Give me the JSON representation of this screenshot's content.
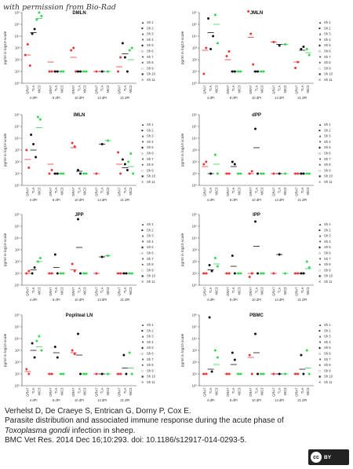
{
  "watermark": "with permission from Bio-Rad",
  "legend_items": [
    "Sh 1",
    "Sh 2",
    "Sh 3",
    "Sh 4",
    "Sh 5",
    "Sh 6",
    "Sh 7",
    "Sh 8",
    "Sh 9",
    "Sh 10",
    "Sh 11"
  ],
  "legend_symbols": [
    "▲",
    "■",
    "▲",
    "▼",
    "◆",
    "◇",
    "▼",
    "★",
    "□",
    "◉",
    "✕"
  ],
  "colors": {
    "black": "#111111",
    "red": "#e33b3b",
    "green": "#39d356",
    "axis": "#444444"
  },
  "citation": {
    "line1": "Verhelst D, De Craeye S, Entrican G, Dorny P, Cox E.",
    "line2": "Parasite distribution and associated immune response during the acute phase of",
    "line3_italic": "Toxoplasma gondii",
    "line3_rest": " infection in sheep.",
    "line4": "BMC Vet Res. 2014 Dec 16;10:293. doi: 10.1186/s12917-014-0293-5."
  },
  "license_badge": {
    "symbol": "cc",
    "text": "BY"
  },
  "chart_data": [
    {
      "type": "scatter",
      "title": "DMLN",
      "ylabel": "pg/ml in log10 scale",
      "yticks": [
        "10⁰",
        "10¹",
        "10²",
        "10³",
        "10⁴",
        "10⁵",
        "10⁶"
      ],
      "ylim": [
        0,
        6
      ],
      "groups": [
        "4 dPI",
        "8 dPI",
        "10 dPI",
        "14 dPI",
        "21 dPI"
      ],
      "methods": [
        "GRA7",
        "TLA",
        "MIC3"
      ],
      "points": [
        [
          [
            2.4,
            3.3,
            1.5
          ],
          [
            4.2,
            4.6
          ],
          [
            5.4,
            6.0,
            5.7
          ]
        ],
        [
          [
            1.0,
            1.0
          ],
          [
            1.0,
            1.0
          ],
          [
            1.0,
            1.0
          ]
        ],
        [
          [
            2.8,
            3.0,
            1.0
          ],
          [
            1.0,
            1.0
          ],
          [
            1.0,
            1.0
          ]
        ],
        [
          [
            1.0
          ],
          [
            1.0
          ],
          [
            1.0
          ]
        ],
        [
          [
            1.0,
            2.2
          ],
          [
            3.4,
            2.2,
            1.0
          ],
          [
            2.8,
            3.0
          ]
        ]
      ],
      "medians": [
        [
          2.4,
          4.3,
          5.5
        ],
        [
          1.8,
          1.0,
          1.0
        ],
        [
          2.2,
          1.0,
          1.0
        ],
        [
          1.0,
          1.0,
          1.0
        ],
        [
          1.4,
          2.5,
          2.0
        ]
      ]
    },
    {
      "type": "scatter",
      "title": "JMLN",
      "ylabel": "pg/ml in log10 scale",
      "yticks": [
        "10⁰",
        "10¹",
        "10²",
        "10³",
        "10⁴",
        "10⁵",
        "10⁶"
      ],
      "ylim": [
        0,
        6
      ],
      "groups": [
        "4 dPI",
        "8 dPI",
        "10 dPI",
        "14 dPI",
        "21 dPI"
      ],
      "methods": [
        "GRA7",
        "TLA",
        "MIC3"
      ],
      "points": [
        [
          [
            0.8,
            3.0
          ],
          [
            5.5,
            2.9,
            4.0
          ],
          [
            5.8,
            3.4
          ]
        ],
        [
          [
            2.3,
            2.7
          ],
          [
            1.0,
            1.0
          ],
          [
            1.0,
            1.0
          ]
        ],
        [
          [
            6.1,
            4.2,
            1.6
          ],
          [
            1.0,
            1.0
          ],
          [
            1.0,
            1.0
          ]
        ],
        [
          [
            3.5
          ],
          [
            3.2
          ],
          [
            3.3
          ]
        ],
        [
          [
            1.3,
            1.8
          ],
          [
            2.9,
            3.1
          ],
          [
            2.9,
            2.4
          ]
        ]
      ],
      "medians": [
        [
          2.8,
          4.3,
          5.0
        ],
        [
          2.0,
          1.0,
          1.0
        ],
        [
          3.9,
          1.0,
          1.0
        ],
        [
          3.5,
          3.3,
          3.3
        ],
        [
          1.8,
          2.8,
          2.6
        ]
      ]
    },
    {
      "type": "scatter",
      "title": "IMLN",
      "ylabel": "pg/ml in log10 scale",
      "yticks": [
        "10⁰",
        "10¹",
        "10²",
        "10³",
        "10⁴",
        "10⁵",
        "10⁶"
      ],
      "ylim": [
        0,
        6
      ],
      "groups": [
        "4 dPI",
        "8 dPI",
        "10 dPI",
        "14 dPI",
        "21 dPI"
      ],
      "methods": [
        "GRA7",
        "TLA",
        "MIC3"
      ],
      "points": [
        [
          [
            3.0,
            1.5
          ],
          [
            4.3,
            3.5,
            2.4
          ],
          [
            5.8,
            5.6
          ]
        ],
        [
          [
            1.0,
            1.3
          ],
          [
            1.0,
            1.0
          ],
          [
            1.0,
            1.0
          ]
        ],
        [
          [
            3.6,
            3.3
          ],
          [
            1.3,
            1.0
          ],
          [
            1.0,
            1.0
          ]
        ],
        [
          [
            1.0
          ],
          [
            3.5
          ],
          [
            3.8
          ]
        ],
        [
          [
            2.8,
            1.0
          ],
          [
            2.2,
            1.8,
            1.3
          ],
          [
            2.0,
            2.7,
            1.0
          ]
        ]
      ],
      "medians": [
        [
          2.2,
          3.0,
          4.9
        ],
        [
          1.8,
          1.0,
          1.0
        ],
        [
          3.2,
          1.2,
          1.0
        ],
        [
          1.0,
          3.5,
          3.8
        ],
        [
          1.8,
          1.5,
          1.6
        ]
      ]
    },
    {
      "type": "scatter",
      "title": "dPP",
      "ylabel": "pg/ml in log10 scale",
      "yticks": [
        "10⁰",
        "10¹",
        "10²",
        "10³",
        "10⁴",
        "10⁵",
        "10⁶"
      ],
      "ylim": [
        0,
        6
      ],
      "groups": [
        "4 dPI",
        "8 dPI",
        "10 dPI",
        "14 dPI",
        "21 dPI"
      ],
      "methods": [
        "GRA7",
        "TLA",
        "MIC3"
      ],
      "points": [
        [
          [
            1.8,
            2.0
          ],
          [
            1.0
          ],
          [
            2.6,
            1.0
          ]
        ],
        [
          [
            1.0,
            1.0
          ],
          [
            2.0,
            1.8
          ],
          [
            1.0,
            1.0
          ]
        ],
        [
          [
            1.0,
            1.2
          ],
          [
            4.8,
            1.0
          ],
          [
            1.0,
            1.0
          ]
        ],
        [
          [
            1.0
          ],
          [
            1.0
          ],
          [
            1.0
          ]
        ],
        [
          [
            1.0,
            1.0
          ],
          [
            1.0,
            1.0
          ],
          [
            1.0,
            1.0
          ]
        ]
      ],
      "medians": [
        [
          1.6,
          1.0,
          1.8
        ],
        [
          1.0,
          1.6,
          1.0
        ],
        [
          1.0,
          3.2,
          1.0
        ],
        [
          1.0,
          1.0,
          1.0
        ],
        [
          1.0,
          1.0,
          1.0
        ]
      ]
    },
    {
      "type": "scatter",
      "title": "JPP",
      "ylabel": "pg/ml in log10 scale",
      "yticks": [
        "10⁰",
        "10¹",
        "10²",
        "10³",
        "10⁴",
        "10⁵",
        "10⁶"
      ],
      "ylim": [
        0,
        6
      ],
      "groups": [
        "4 dPI",
        "8 dPI",
        "10 dPI",
        "14 dPI",
        "21 dPI"
      ],
      "methods": [
        "GRA7",
        "TLA",
        "MIC3"
      ],
      "points": [
        [
          [
            1.0,
            1.2
          ],
          [
            1.0,
            1.5
          ],
          [
            2.0,
            2.3
          ]
        ],
        [
          [
            1.0,
            1.0
          ],
          [
            2.6,
            1.0
          ],
          [
            1.0,
            1.0
          ]
        ],
        [
          [
            1.8,
            1.2
          ],
          [
            5.6,
            1.0
          ],
          [
            1.0,
            1.0
          ]
        ],
        [
          [
            1.0
          ],
          [
            2.4
          ],
          [
            2.5
          ]
        ],
        [
          [
            1.0,
            1.0
          ],
          [
            1.0,
            1.0
          ],
          [
            1.0,
            1.0
          ]
        ]
      ],
      "medians": [
        [
          1.0,
          1.3,
          2.0
        ],
        [
          1.0,
          1.5,
          1.0
        ],
        [
          1.3,
          3.2,
          1.0
        ],
        [
          1.0,
          2.4,
          2.5
        ],
        [
          1.0,
          1.0,
          1.0
        ]
      ]
    },
    {
      "type": "scatter",
      "title": "IPP",
      "ylabel": "pg/ml in log10 scale",
      "yticks": [
        "10⁰",
        "10¹",
        "10²",
        "10³",
        "10⁴",
        "10⁵",
        "10⁶"
      ],
      "ylim": [
        0,
        6
      ],
      "groups": [
        "4 dPI",
        "8 dPI",
        "10 dPI",
        "14 dPI",
        "21 dPI"
      ],
      "methods": [
        "GRA7",
        "TLA",
        "MIC3"
      ],
      "points": [
        [
          [
            1.0,
            1.0
          ],
          [
            1.7,
            1.2
          ],
          [
            2.3,
            1.6
          ]
        ],
        [
          [
            1.0,
            1.0
          ],
          [
            2.5,
            1.0
          ],
          [
            1.0,
            1.0
          ]
        ],
        [
          [
            0.7,
            1.0
          ],
          [
            5.4,
            1.0
          ],
          [
            1.0,
            1.0
          ]
        ],
        [
          [
            1.0
          ],
          [
            2.6
          ],
          [
            1.0
          ]
        ],
        [
          [
            1.0,
            1.0
          ],
          [
            1.0,
            1.0
          ],
          [
            2.0,
            1.5
          ]
        ]
      ],
      "medians": [
        [
          1.0,
          1.3,
          1.8
        ],
        [
          1.0,
          1.6,
          1.0
        ],
        [
          1.0,
          3.3,
          1.0
        ],
        [
          1.0,
          2.6,
          1.0
        ],
        [
          1.0,
          1.0,
          1.4
        ]
      ]
    },
    {
      "type": "scatter",
      "title": "Popliteal LN",
      "ylabel": "pg/ml in log10 scale",
      "yticks": [
        "10⁰",
        "10¹",
        "10²",
        "10³",
        "10⁴",
        "10⁵",
        "10⁶"
      ],
      "ylim": [
        0,
        6
      ],
      "groups": [
        "4 dPI",
        "8 dPI",
        "10 dPI",
        "14 dPI",
        "21 dPI"
      ],
      "methods": [
        "GRA7",
        "TLA",
        "MIC3"
      ],
      "points": [
        [
          [
            1.4,
            1.0
          ],
          [
            3.6,
            2.4
          ],
          [
            3.8,
            4.2,
            3.0
          ]
        ],
        [
          [
            1.0,
            1.0
          ],
          [
            3.3,
            2.4
          ],
          [
            1.0,
            1.0
          ]
        ],
        [
          [
            3.0,
            2.7
          ],
          [
            4.4,
            1.0
          ],
          [
            1.0,
            1.0
          ]
        ],
        [
          [
            1.0
          ],
          [
            1.0
          ],
          [
            1.0
          ]
        ],
        [
          [
            1.0,
            1.0
          ],
          [
            2.6,
            1.0
          ],
          [
            2.8,
            1.0
          ]
        ]
      ],
      "medians": [
        [
          1.2,
          3.0,
          3.3
        ],
        [
          1.0,
          2.8,
          1.0
        ],
        [
          2.8,
          2.6,
          1.0
        ],
        [
          1.0,
          1.0,
          1.0
        ],
        [
          1.0,
          1.5,
          1.5
        ]
      ]
    },
    {
      "type": "scatter",
      "title": "PBMC",
      "ylabel": "pg/ml in log10 scale",
      "yticks": [
        "10⁰",
        "10¹",
        "10²",
        "10³",
        "10⁴",
        "10⁵",
        "10⁶"
      ],
      "ylim": [
        0,
        6
      ],
      "groups": [
        "4 dPI",
        "8 dPI",
        "10 dPI",
        "14 dPI",
        "21 dPI"
      ],
      "methods": [
        "GRA7",
        "TLA",
        "MIC3"
      ],
      "points": [
        [
          [
            1.0,
            1.0
          ],
          [
            5.8,
            1.2
          ],
          [
            3.0,
            2.4
          ]
        ],
        [
          [
            1.0,
            1.0
          ],
          [
            2.8,
            2.2
          ],
          [
            1.0,
            1.0
          ]
        ],
        [
          [
            2.6,
            1.0
          ],
          [
            4.4,
            1.0
          ],
          [
            1.0,
            1.0
          ]
        ],
        [
          [
            1.0
          ],
          [
            1.0
          ],
          [
            1.0
          ]
        ],
        [
          [
            1.0,
            1.0
          ],
          [
            2.6,
            1.0
          ],
          [
            3.0,
            1.0
          ]
        ]
      ],
      "medians": [
        [
          1.0,
          1.4,
          1.8
        ],
        [
          1.0,
          1.8,
          1.0
        ],
        [
          2.4,
          2.8,
          1.0
        ],
        [
          1.0,
          1.0,
          1.0
        ],
        [
          1.0,
          1.4,
          1.5
        ]
      ]
    }
  ]
}
